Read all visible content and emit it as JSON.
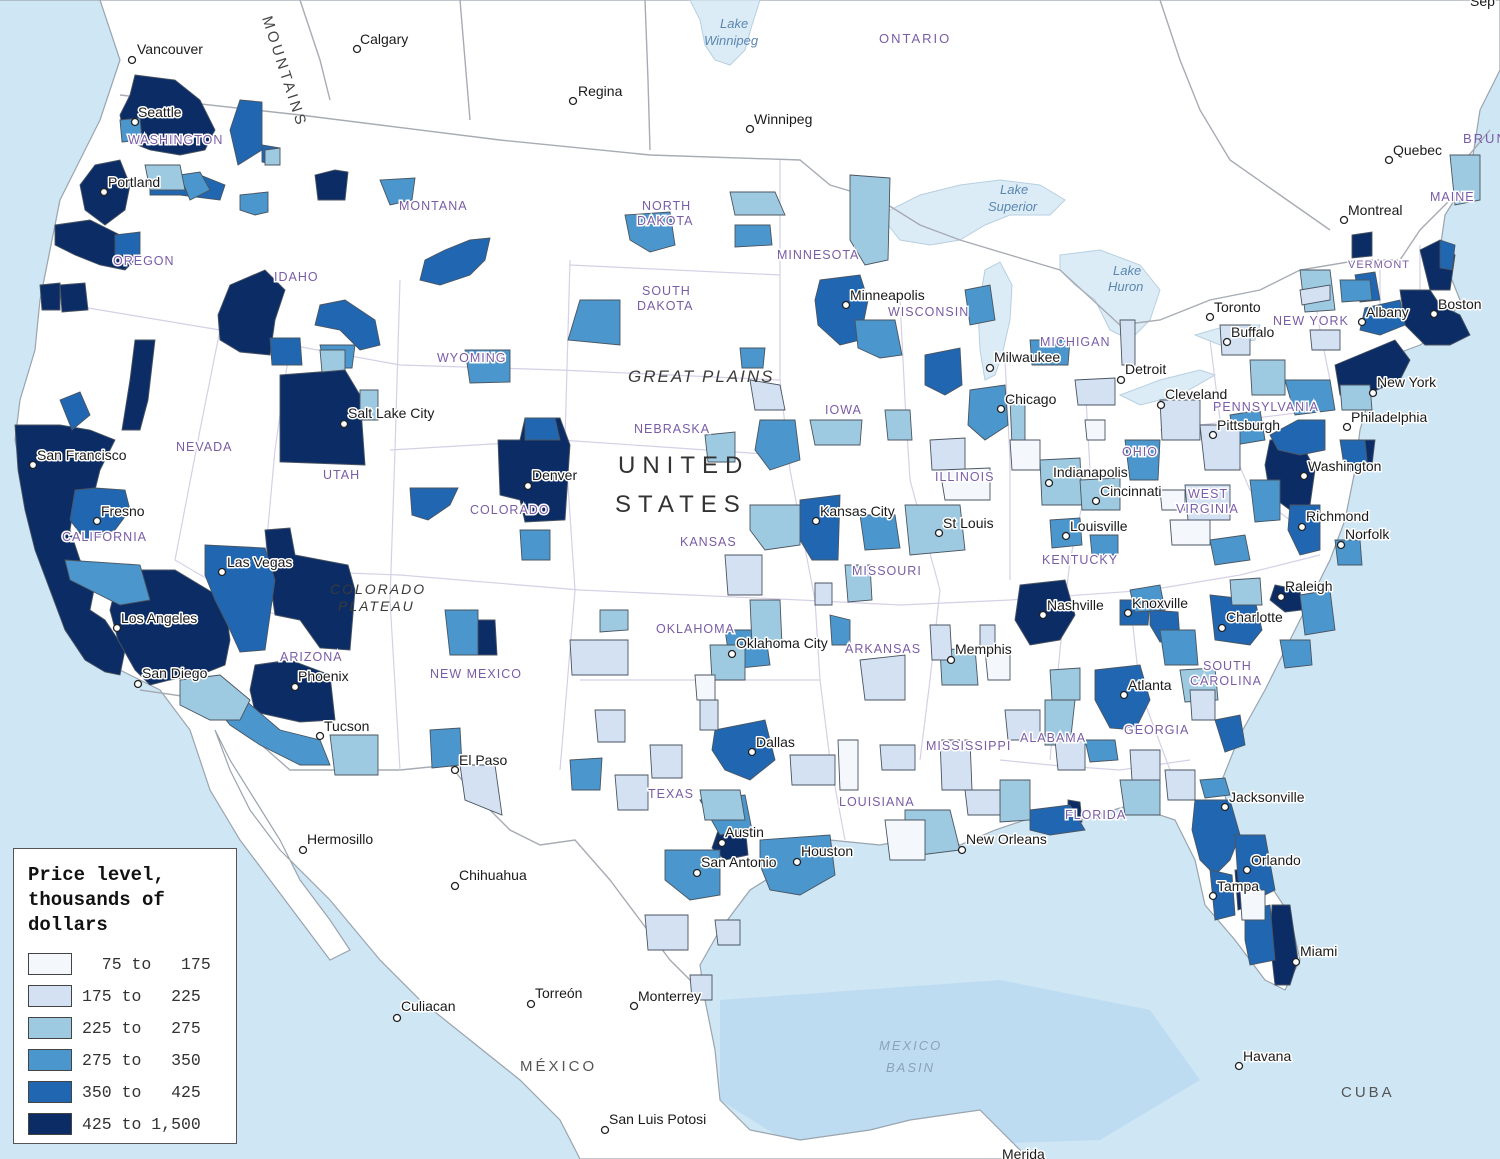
{
  "legend": {
    "title": "Price level,\nthousands of\ndollars",
    "classes": [
      {
        "label": "  75 to   175",
        "color": "#f4f8fd"
      },
      {
        "label": "175 to   225",
        "color": "#d3e1f2"
      },
      {
        "label": "225 to   275",
        "color": "#9ecae1"
      },
      {
        "label": "275 to   350",
        "color": "#4b96cc"
      },
      {
        "label": "350 to   425",
        "color": "#2066b1"
      },
      {
        "label": "425 to 1,500",
        "color": "#0c2c66"
      }
    ]
  },
  "labels": {
    "countries": {
      "usa_line1": "UNITED",
      "usa_line2": "STATES",
      "mexico": "MÉXICO",
      "cuba": "CUBA"
    },
    "provinces": {
      "ontario": "ONTARIO",
      "bruns": "BRUN",
      "sep": "Sep"
    },
    "physical": {
      "great_plains": "GREAT PLAINS",
      "colorado_plateau_1": "COLORADO",
      "colorado_plateau_2": "PLATEAU",
      "mountains": "MOUNTAINS"
    },
    "water": {
      "lake_winnipeg_1": "Lake",
      "lake_winnipeg_2": "Winnipeg",
      "lake_superior_1": "Lake",
      "lake_superior_2": "Superior",
      "lake_huron_1": "Lake",
      "lake_huron_2": "Huron",
      "mexico_basin_1": "MEXICO",
      "mexico_basin_2": "BASIN"
    },
    "states": {
      "washington": "WASHINGTON",
      "oregon": "OREGON",
      "california": "CALIFORNIA",
      "nevada": "NEVADA",
      "idaho": "IDAHO",
      "montana": "MONTANA",
      "wyoming": "WYOMING",
      "utah": "UTAH",
      "arizona": "ARIZONA",
      "colorado": "COLORADO",
      "new_mexico": "NEW MEXICO",
      "north_dakota_1": "NORTH",
      "north_dakota_2": "DAKOTA",
      "south_dakota_1": "SOUTH",
      "south_dakota_2": "DAKOTA",
      "nebraska": "NEBRASKA",
      "kansas": "KANSAS",
      "oklahoma": "OKLAHOMA",
      "texas": "TEXAS",
      "minnesota": "MINNESOTA",
      "iowa": "IOWA",
      "missouri": "MISSOURI",
      "arkansas": "ARKANSAS",
      "louisiana": "LOUISIANA",
      "wisconsin": "WISCONSIN",
      "illinois": "ILLINOIS",
      "mississippi": "MISSISSIPPI",
      "michigan": "MICHIGAN",
      "ohio": "OHIO",
      "kentucky": "KENTUCKY",
      "alabama": "ALABAMA",
      "georgia": "GEORGIA",
      "florida": "FLORIDA",
      "pennsylvania": "PENNSYLVANIA",
      "west_virginia_1": "WEST",
      "west_virginia_2": "VIRGINIA",
      "south_carolina_1": "SOUTH",
      "south_carolina_2": "CAROLINA",
      "new_york": "NEW YORK",
      "vermont": "VERMONT",
      "maine": "MAINE"
    },
    "cities": {
      "vancouver": "Vancouver",
      "calgary": "Calgary",
      "regina": "Regina",
      "winnipeg": "Winnipeg",
      "seattle": "Seattle",
      "portland": "Portland",
      "san_francisco": "San Francisco",
      "fresno": "Fresno",
      "los_angeles": "Los Angeles",
      "san_diego": "San Diego",
      "las_vegas": "Las Vegas",
      "phoenix": "Phoenix",
      "tucson": "Tucson",
      "salt_lake_city": "Salt Lake City",
      "denver": "Denver",
      "el_paso": "El Paso",
      "hermosillo": "Hermosillo",
      "chihuahua": "Chihuahua",
      "culiacan": "Culiacan",
      "torreon": "Torreón",
      "monterrey": "Monterrey",
      "san_luis_potosi": "San Luis Potosi",
      "merida": "Merida",
      "minneapolis": "Minneapolis",
      "kansas_city": "Kansas City",
      "oklahoma_city": "Oklahoma City",
      "dallas": "Dallas",
      "austin": "Austin",
      "san_antonio": "San Antonio",
      "houston": "Houston",
      "st_louis": "St Louis",
      "memphis": "Memphis",
      "new_orleans": "New Orleans",
      "milwaukee": "Milwaukee",
      "chicago": "Chicago",
      "indianapolis": "Indianapolis",
      "cincinnati": "Cincinnati",
      "louisville": "Louisville",
      "nashville": "Nashville",
      "knoxville": "Knoxville",
      "atlanta": "Atlanta",
      "detroit": "Detroit",
      "cleveland": "Cleveland",
      "pittsburgh": "Pittsburgh",
      "toronto": "Toronto",
      "buffalo": "Buffalo",
      "montreal": "Montreal",
      "quebec": "Quebec",
      "albany": "Albany",
      "boston": "Boston",
      "new_york": "New York",
      "philadelphia": "Philadelphia",
      "washington": "Washington",
      "richmond": "Richmond",
      "norfolk": "Norfolk",
      "raleigh": "Raleigh",
      "charlotte": "Charlotte",
      "jacksonville": "Jacksonville",
      "orlando": "Orlando",
      "tampa": "Tampa",
      "miami": "Miami",
      "havana": "Havana"
    }
  },
  "colors": {
    "ocean": "#cfe6f5",
    "land": "#ffffff",
    "state_label": "#7a5ca6",
    "water_label": "#5b86b0"
  }
}
